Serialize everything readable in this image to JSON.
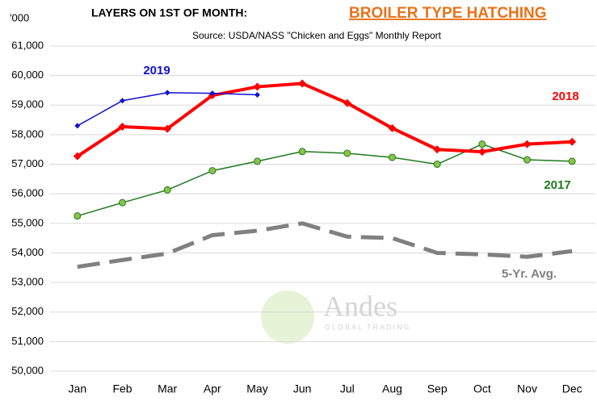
{
  "chart_data": {
    "type": "line",
    "title": "LAYERS ON 1ST OF MONTH: ",
    "title_highlight": "BROILER TYPE HATCHING",
    "subtitle": "Source: USDA/NASS \"Chicken and Eggs\" Monthly Report",
    "y_unit": "'000",
    "watermark": "Andes",
    "watermark_sub": "GLOBAL TRADING",
    "categories": [
      "Jan",
      "Feb",
      "Mar",
      "Apr",
      "May",
      "Jun",
      "Jul",
      "Aug",
      "Sep",
      "Oct",
      "Nov",
      "Dec"
    ],
    "ylim": [
      50000,
      61000
    ],
    "yticks": [
      {
        "value": 50000,
        "label": "50,000"
      },
      {
        "value": 51000,
        "label": "51,000"
      },
      {
        "value": 52000,
        "label": "52,000"
      },
      {
        "value": 53000,
        "label": "53,000"
      },
      {
        "value": 54000,
        "label": "54,000"
      },
      {
        "value": 55000,
        "label": "55,000"
      },
      {
        "value": 56000,
        "label": "56,000"
      },
      {
        "value": 57000,
        "label": "57,000"
      },
      {
        "value": 58000,
        "label": "58,000"
      },
      {
        "value": 59000,
        "label": "59,000"
      },
      {
        "value": 60000,
        "label": "60,000"
      },
      {
        "value": 61000,
        "label": "61,000"
      }
    ],
    "grid": true,
    "series": [
      {
        "name": "5-Yr. Avg.",
        "color": "#808080",
        "dashed": true,
        "marker": "none",
        "width": 5,
        "values": [
          53530,
          53760,
          53980,
          54600,
          54750,
          55000,
          54550,
          54500,
          54000,
          53950,
          53870,
          54060
        ]
      },
      {
        "name": "2017",
        "color": "#1e7a1e",
        "marker": "circle",
        "marker_color": "#8bc34a",
        "width": 1.5,
        "values": [
          55250,
          55700,
          56130,
          56780,
          57100,
          57430,
          57370,
          57230,
          57000,
          57680,
          57150,
          57100
        ]
      },
      {
        "name": "2018",
        "color": "#ff0000",
        "marker": "diamond",
        "width": 4,
        "values": [
          57270,
          58270,
          58200,
          59330,
          59620,
          59730,
          59070,
          58220,
          57500,
          57420,
          57680,
          57760
        ]
      },
      {
        "name": "2019",
        "color": "#1010d0",
        "marker": "diamond",
        "width": 1.5,
        "values": [
          58300,
          59150,
          59420,
          59400,
          59350,
          null,
          null,
          null,
          null,
          null,
          null,
          null
        ]
      }
    ]
  }
}
